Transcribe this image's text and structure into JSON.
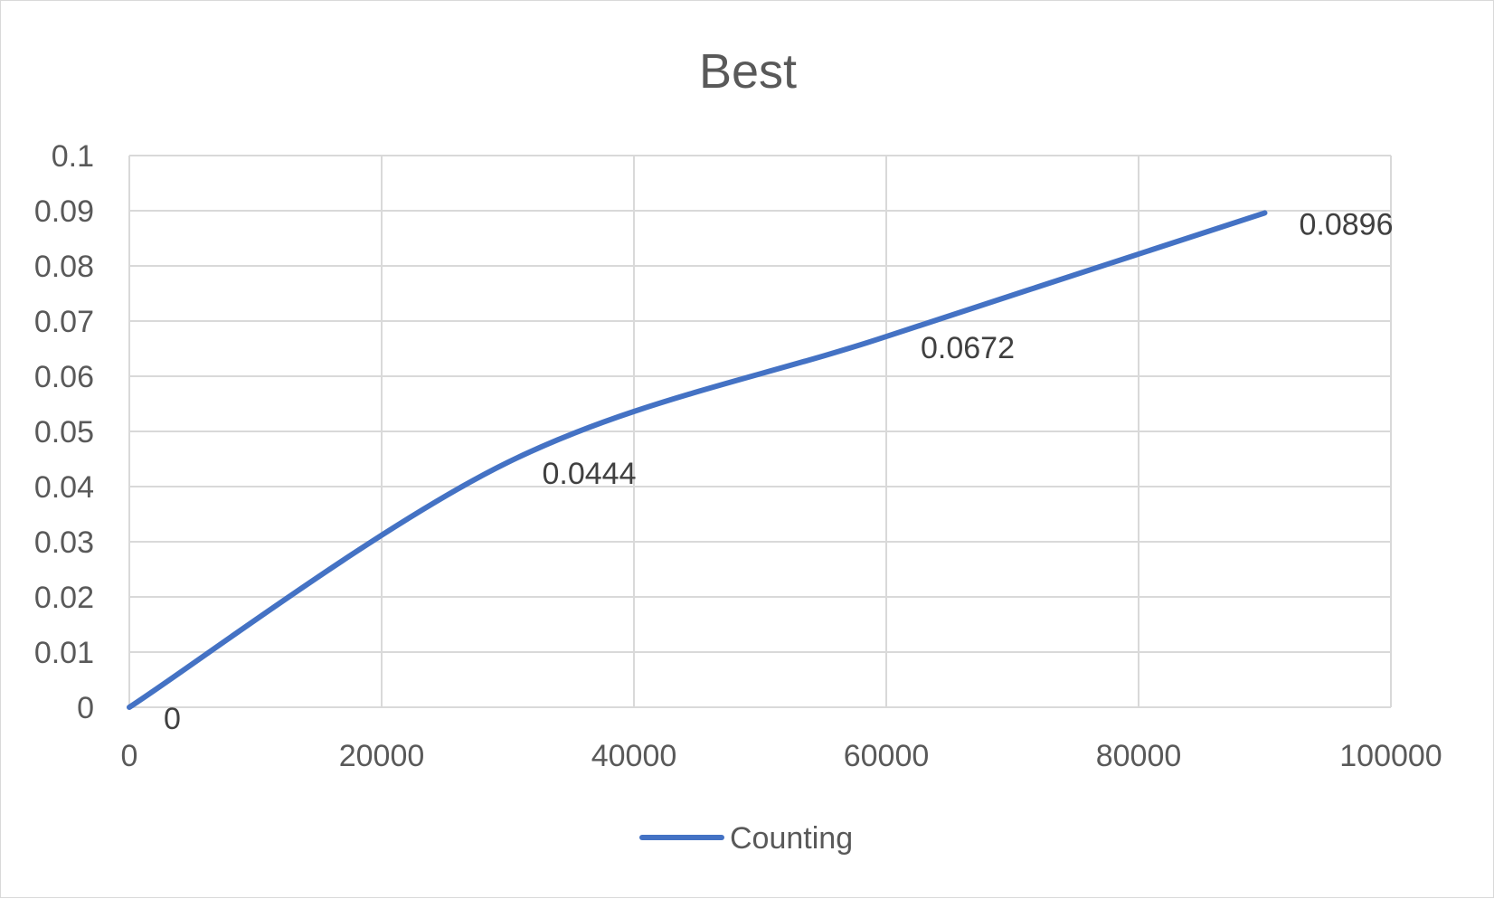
{
  "chart_data": {
    "type": "line",
    "title": "Best",
    "xlabel": "",
    "ylabel": "",
    "xlim": [
      0,
      100000
    ],
    "ylim": [
      0,
      0.1
    ],
    "x_ticks": [
      "0",
      "20000",
      "40000",
      "60000",
      "80000",
      "100000"
    ],
    "y_ticks": [
      "0",
      "0.01",
      "0.02",
      "0.03",
      "0.04",
      "0.05",
      "0.06",
      "0.07",
      "0.08",
      "0.09",
      "0.1"
    ],
    "grid": true,
    "smooth": true,
    "legend_position": "bottom",
    "series": [
      {
        "name": "Counting",
        "color": "#4472C4",
        "points": [
          {
            "x": 0,
            "y": 0,
            "label": "0"
          },
          {
            "x": 30000,
            "y": 0.0444,
            "label": "0.0444"
          },
          {
            "x": 60000,
            "y": 0.0672,
            "label": "0.0672"
          },
          {
            "x": 90000,
            "y": 0.0896,
            "label": "0.0896"
          }
        ]
      }
    ]
  }
}
